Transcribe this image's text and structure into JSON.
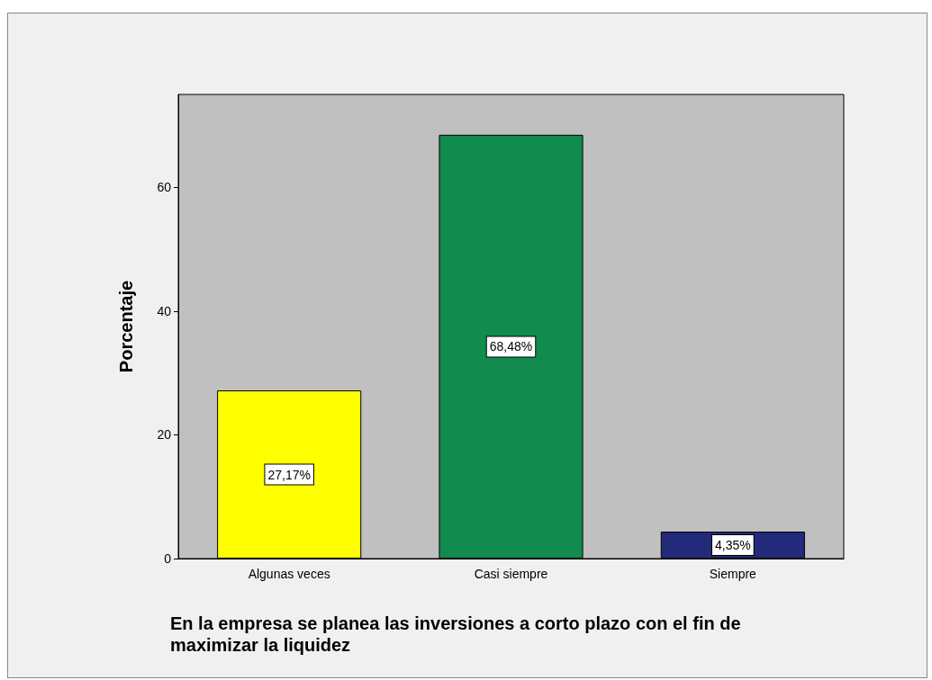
{
  "chart_data": {
    "type": "bar",
    "xlabel": "En la empresa se planea las inversiones a corto plazo con el fin de maximizar la liquidez",
    "ylabel": "Porcentaje",
    "categories": [
      "Algunas veces",
      "Casi siempre",
      "Siempre"
    ],
    "values": [
      27.17,
      68.48,
      4.35
    ],
    "colors": [
      "#ffff00",
      "#118c4e",
      "#232a7a"
    ],
    "value_labels": [
      "27,17%",
      "68,48%",
      "4,35%"
    ],
    "ylim": [
      0,
      75
    ],
    "yticks": [
      0,
      20,
      40,
      60
    ],
    "grid": false
  }
}
